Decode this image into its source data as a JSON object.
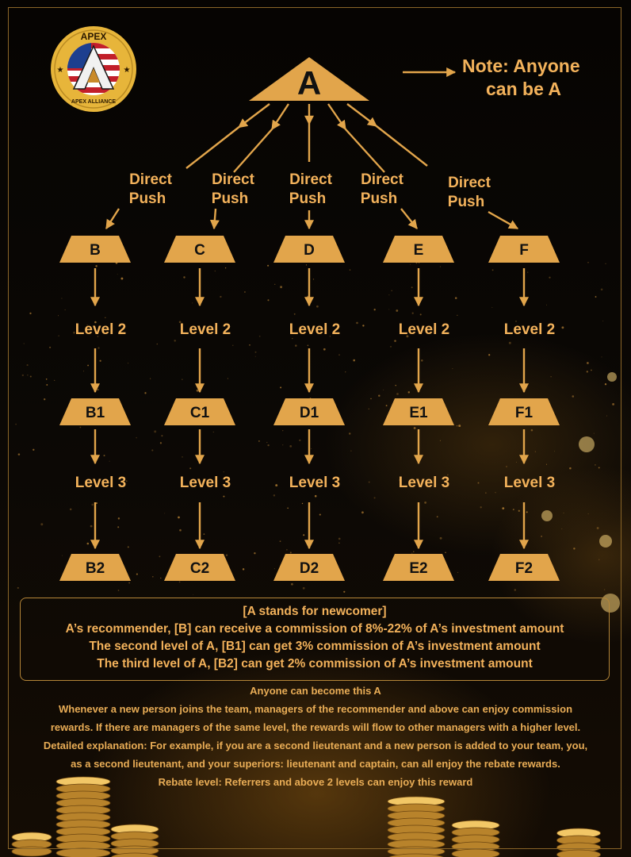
{
  "logo": {
    "top_text": "APEX",
    "bottom_text": "APEX ALLIANCE",
    "colors": {
      "ring": "#e7b53a",
      "blue": "#1d3f8f",
      "red": "#c21f2a",
      "white": "#ffffff"
    }
  },
  "root": {
    "label": "A"
  },
  "note": {
    "line1": "Note: Anyone",
    "line2": "can be A"
  },
  "link_label": {
    "line1": "Direct",
    "line2": "Push"
  },
  "level2_label": "Level 2",
  "level3_label": "Level 3",
  "columns": [
    {
      "level1": "B",
      "level2": "B1",
      "level3": "B2"
    },
    {
      "level1": "C",
      "level2": "C1",
      "level3": "C2"
    },
    {
      "level1": "D",
      "level2": "D1",
      "level3": "D2"
    },
    {
      "level1": "E",
      "level2": "E1",
      "level3": "E2"
    },
    {
      "level1": "F",
      "level2": "F1",
      "level3": "F2"
    }
  ],
  "info_box": {
    "title": "[A stands for newcomer]",
    "line1": "A’s recommender, [B] can receive a commission of 8%-22% of A’s investment amount",
    "line2": "The second level of A, [B1] can get 3% commission of A’s investment amount",
    "line3": "The third level of A, [B2] can get 2% commission of A’s investment amount"
  },
  "notes": {
    "line1": "Anyone can become this A",
    "line2": "Whenever a new person joins the team, managers of the recommender and above can enjoy commission",
    "line3": "rewards. If there are managers of the same level, the rewards will flow to other managers with a higher level.",
    "line4": "Detailed explanation: For example, if you are a second lieutenant and a new person is added to your team, you,",
    "line5": "as a second lieutenant, and your superiors: lieutenant and captain, can all enjoy the rebate rewards.",
    "line6": "Rebate level: Referrers and above 2 levels can enjoy this reward"
  },
  "colors": {
    "gold": "#e2a54b",
    "text_gold": "#f3b25b",
    "background": "#050302",
    "node_text": "#111111"
  }
}
